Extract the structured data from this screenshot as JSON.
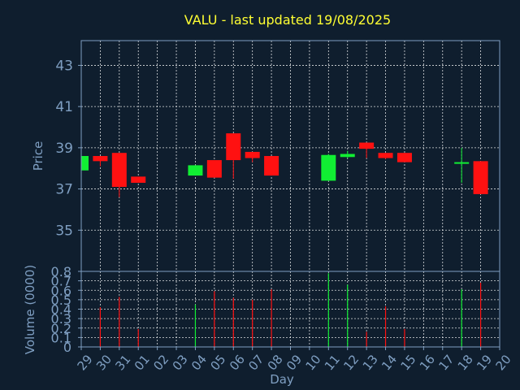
{
  "chart_data": {
    "type": "candlestick",
    "title": "VALU - last updated 19/08/2025",
    "xlabel": "Day",
    "price_ylabel": "Price",
    "volume_ylabel": "Volume (0000)",
    "x_ticks": [
      "29",
      "30",
      "31",
      "01",
      "02",
      "03",
      "04",
      "05",
      "06",
      "07",
      "08",
      "09",
      "10",
      "11",
      "12",
      "13",
      "14",
      "15",
      "16",
      "17",
      "18",
      "19",
      "20"
    ],
    "price_ylim": [
      33.0,
      44.2
    ],
    "price_ticks": [
      35,
      37,
      39,
      41,
      43
    ],
    "volume_ylim": [
      0,
      0.8
    ],
    "volume_ticks": [
      0,
      0.1,
      0.2,
      0.3,
      0.4,
      0.5,
      0.6,
      0.7,
      0.8
    ],
    "volume_tick_labels": [
      "0",
      "0.1",
      "0.2",
      "0.3",
      "0.4",
      "0.5",
      "0.6",
      "0.7",
      "0.8"
    ],
    "candles": [
      {
        "day": "29",
        "open": 37.9,
        "high": 38.6,
        "low": 37.9,
        "close": 38.6,
        "volume": 0.0
      },
      {
        "day": "30",
        "open": 38.6,
        "high": 38.6,
        "low": 38.1,
        "close": 38.35,
        "volume": 0.42
      },
      {
        "day": "31",
        "open": 38.75,
        "high": 38.75,
        "low": 36.6,
        "close": 37.1,
        "volume": 0.53
      },
      {
        "day": "01",
        "open": 37.6,
        "high": 37.6,
        "low": 37.3,
        "close": 37.3,
        "volume": 0.19
      },
      {
        "day": "04",
        "open": 37.65,
        "high": 38.15,
        "low": 37.65,
        "close": 38.15,
        "volume": 0.45
      },
      {
        "day": "05",
        "open": 38.4,
        "high": 38.4,
        "low": 37.55,
        "close": 37.55,
        "volume": 0.59
      },
      {
        "day": "06",
        "open": 39.7,
        "high": 39.7,
        "low": 37.5,
        "close": 38.4,
        "volume": 0.52
      },
      {
        "day": "07",
        "open": 38.8,
        "high": 38.8,
        "low": 38.3,
        "close": 38.5,
        "volume": 0.5
      },
      {
        "day": "08",
        "open": 38.6,
        "high": 38.6,
        "low": 37.65,
        "close": 37.65,
        "volume": 0.61
      },
      {
        "day": "11",
        "open": 37.4,
        "high": 38.7,
        "low": 37.4,
        "close": 38.65,
        "volume": 0.78
      },
      {
        "day": "12",
        "open": 38.55,
        "high": 38.85,
        "low": 38.5,
        "close": 38.7,
        "volume": 0.66
      },
      {
        "day": "13",
        "open": 39.25,
        "high": 39.25,
        "low": 38.5,
        "close": 38.95,
        "volume": 0.16
      },
      {
        "day": "14",
        "open": 38.75,
        "high": 38.75,
        "low": 38.45,
        "close": 38.5,
        "volume": 0.43
      },
      {
        "day": "15",
        "open": 38.75,
        "high": 38.75,
        "low": 38.3,
        "close": 38.3,
        "volume": 0.19
      },
      {
        "day": "18",
        "open": 38.3,
        "high": 39.0,
        "low": 37.3,
        "close": 38.3,
        "volume": 0.61
      },
      {
        "day": "19",
        "open": 38.35,
        "high": 38.35,
        "low": 36.75,
        "close": 36.75,
        "volume": 0.68
      }
    ],
    "colors": {
      "background": "#0f1e2e",
      "axis_text": "#7f9fc2",
      "title": "#ffff33",
      "grid": "#ffffff",
      "up": "#11ee33",
      "down": "#ff1111"
    }
  }
}
